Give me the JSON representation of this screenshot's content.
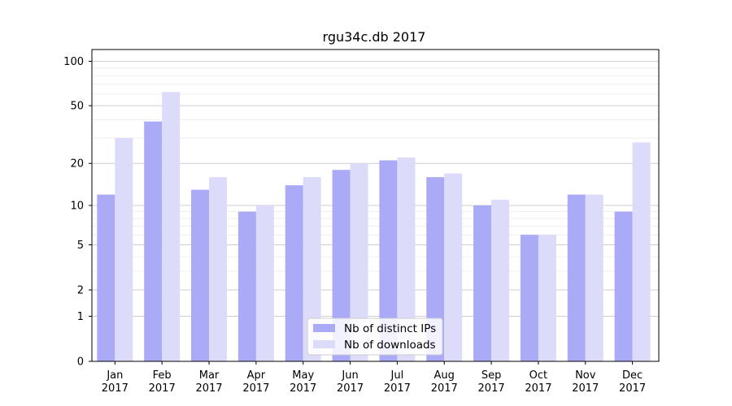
{
  "chart_data": {
    "type": "bar",
    "title": "rgu34c.db 2017",
    "xlabel": "",
    "ylabel": "",
    "yscale": "log1p",
    "ylim": [
      0,
      120
    ],
    "yticks": [
      0,
      1,
      2,
      5,
      10,
      20,
      50,
      100
    ],
    "grid": true,
    "legend_position": "bottom-center",
    "categories": [
      [
        "Jan",
        "2017"
      ],
      [
        "Feb",
        "2017"
      ],
      [
        "Mar",
        "2017"
      ],
      [
        "Apr",
        "2017"
      ],
      [
        "May",
        "2017"
      ],
      [
        "Jun",
        "2017"
      ],
      [
        "Jul",
        "2017"
      ],
      [
        "Aug",
        "2017"
      ],
      [
        "Sep",
        "2017"
      ],
      [
        "Oct",
        "2017"
      ],
      [
        "Nov",
        "2017"
      ],
      [
        "Dec",
        "2017"
      ]
    ],
    "series": [
      {
        "name": "Nb of distinct IPs",
        "color": "#aaaaf7",
        "values": [
          12,
          39,
          13,
          9,
          14,
          18,
          21,
          16,
          10,
          6,
          12,
          9
        ]
      },
      {
        "name": "Nb of downloads",
        "color": "#dcdcfa",
        "values": [
          30,
          62,
          16,
          10,
          16,
          20,
          22,
          17,
          11,
          6,
          12,
          28
        ]
      }
    ]
  }
}
